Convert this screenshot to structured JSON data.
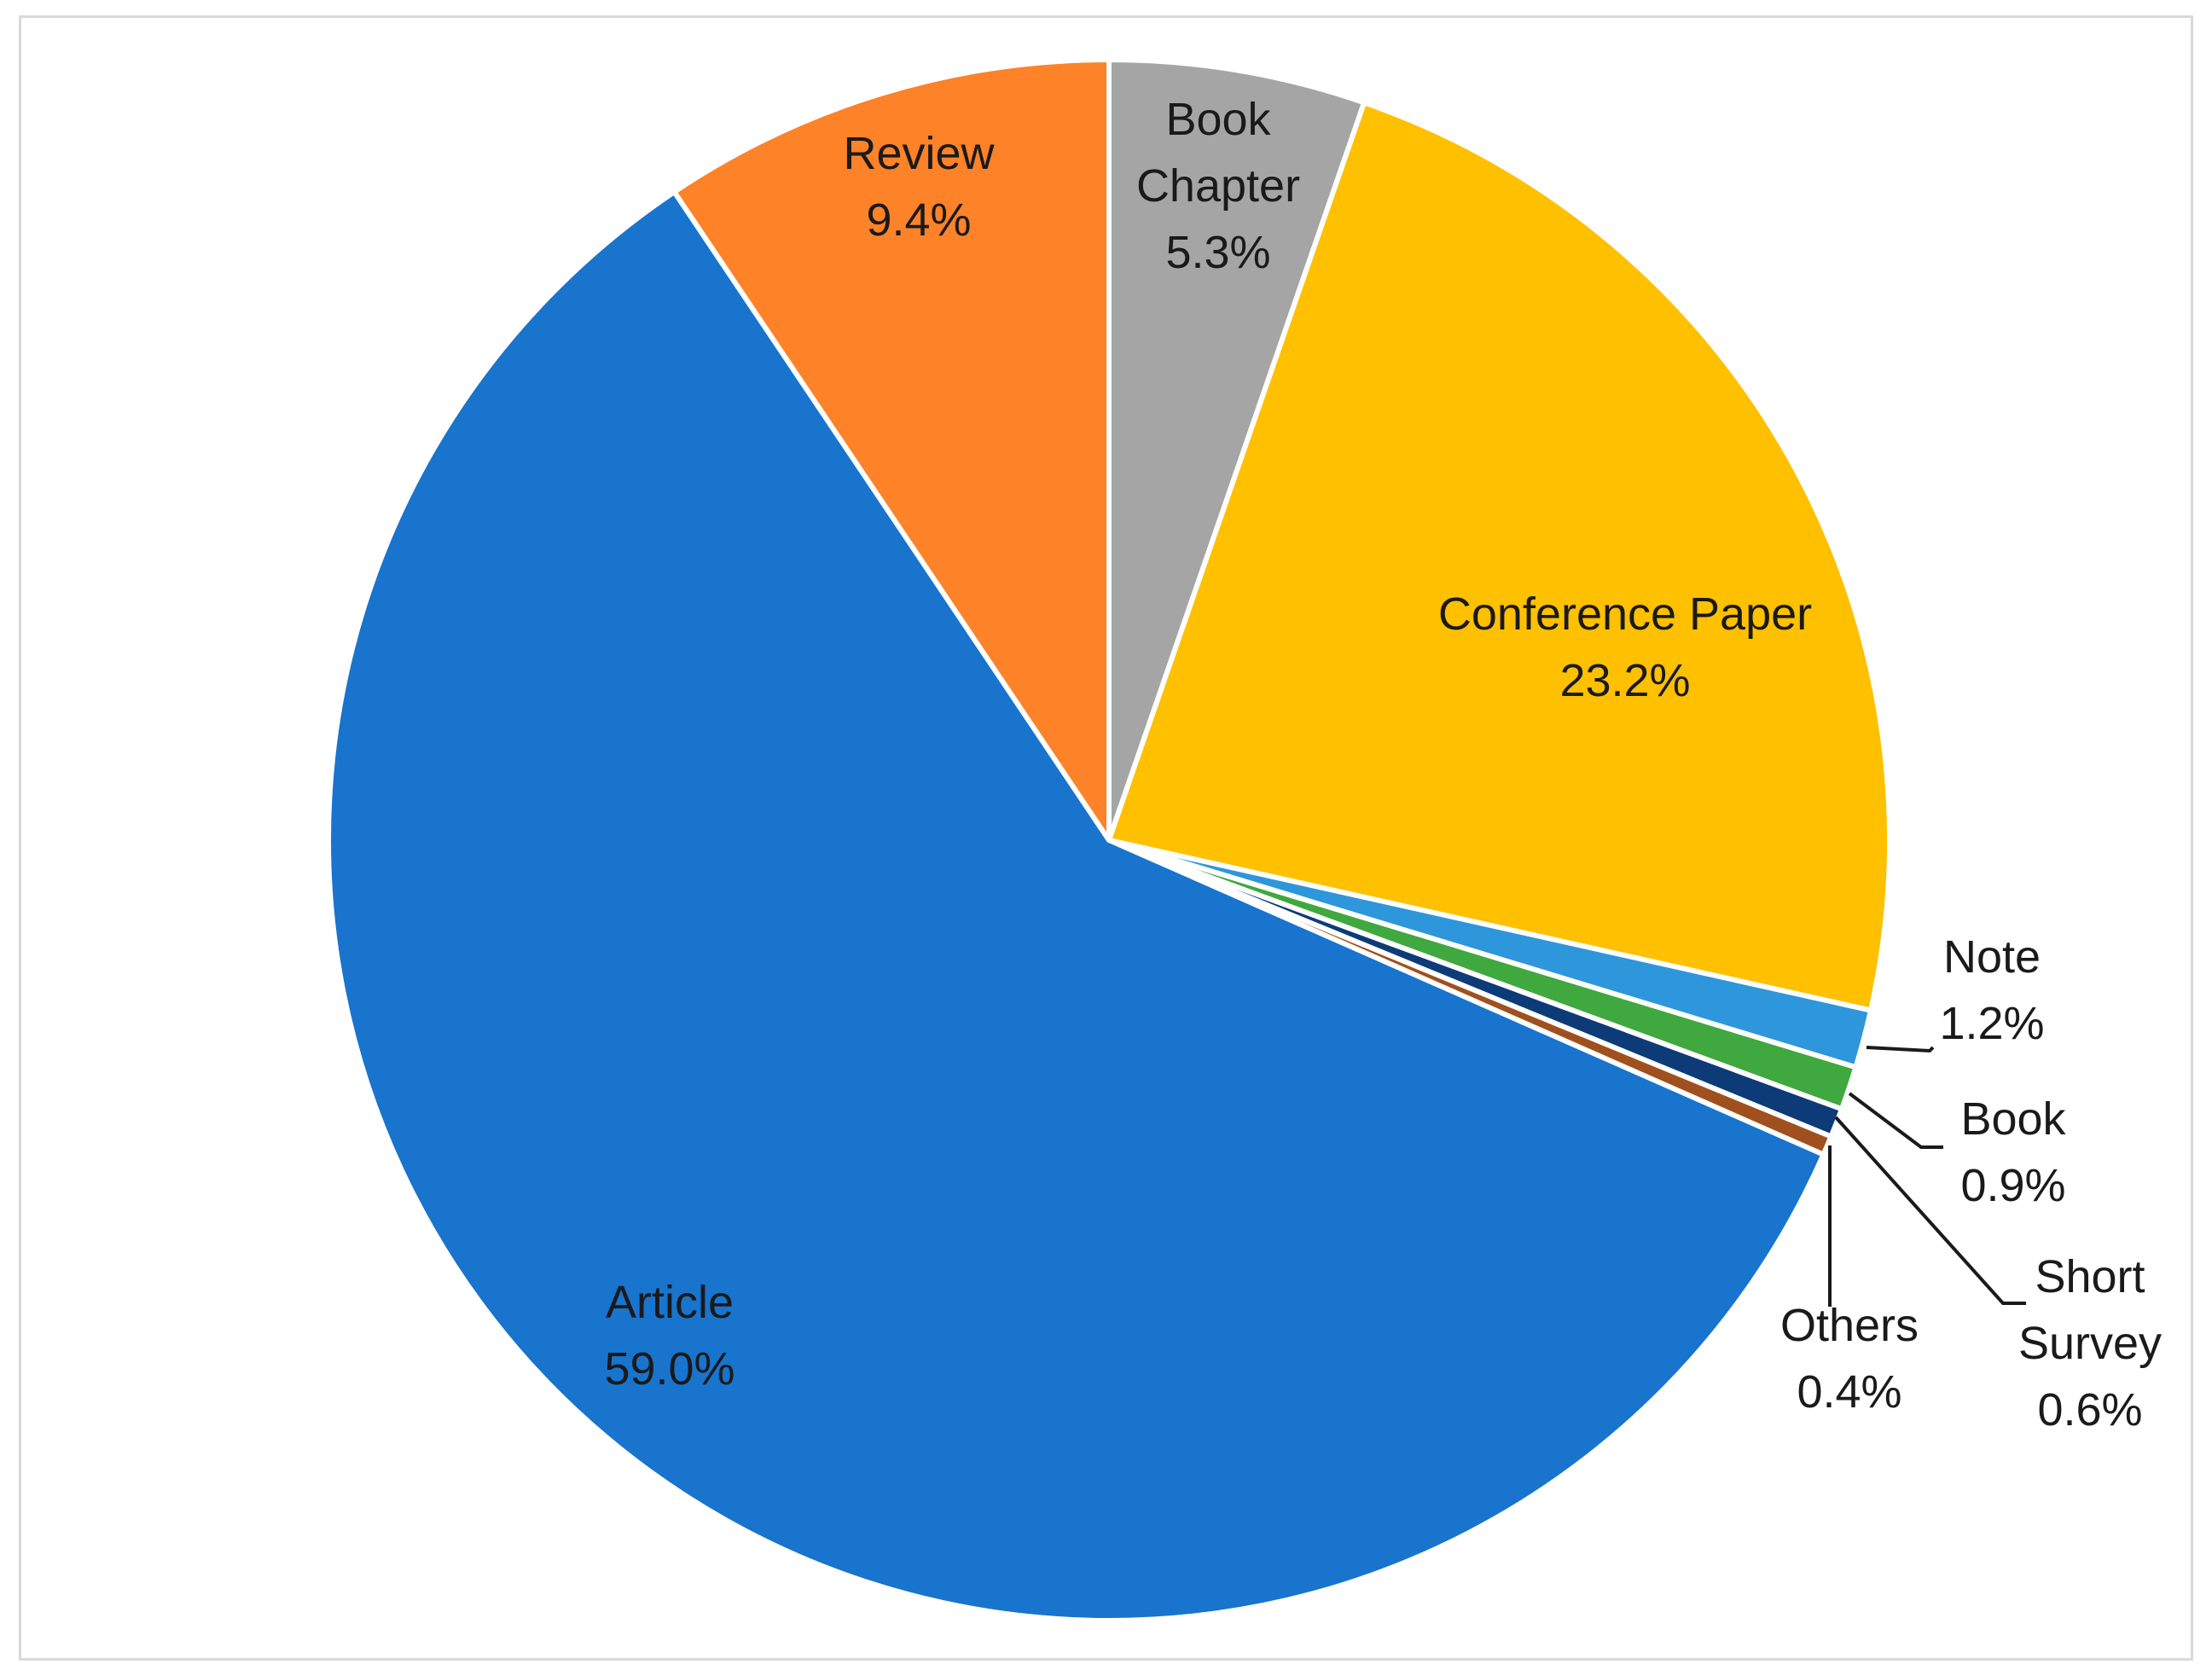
{
  "chart_data": {
    "type": "pie",
    "title": "",
    "start_angle_deg": 0,
    "direction": "clockwise",
    "slices": [
      {
        "label": "Book Chapter",
        "value": 5.3,
        "value_label": "5.3%",
        "color": "#a5a5a5"
      },
      {
        "label": "Conference Paper",
        "value": 23.2,
        "value_label": "23.2%",
        "color": "#ffc000"
      },
      {
        "label": "Note",
        "value": 1.2,
        "value_label": "1.2%",
        "color": "#2e96db"
      },
      {
        "label": "Book",
        "value": 0.9,
        "value_label": "0.9%",
        "color": "#3fa83f"
      },
      {
        "label": "Short Survey",
        "value": 0.6,
        "value_label": "0.6%",
        "color": "#0d3b78"
      },
      {
        "label": "Others",
        "value": 0.4,
        "value_label": "0.4%",
        "color": "#a0501e"
      },
      {
        "label": "Article",
        "value": 59.0,
        "value_label": "59.0%",
        "color": "#1874cd"
      },
      {
        "label": "Review",
        "value": 9.4,
        "value_label": "9.4%",
        "color": "#fd8228"
      }
    ]
  }
}
